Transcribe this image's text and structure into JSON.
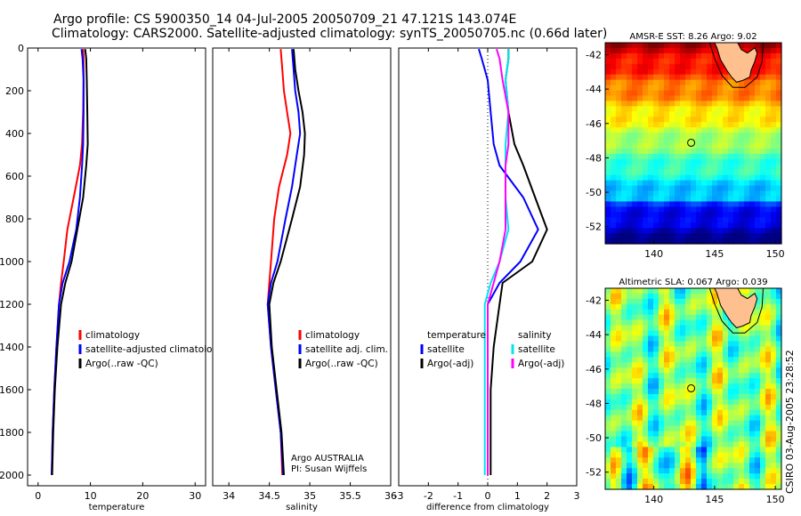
{
  "header": {
    "line1": "Argo profile: CS 5900350_14 04-Jul-2005 20050709_21 47.121S 143.074E",
    "line2": "Climatology: CARS2000. Satellite-adjusted climatology: synTS_20050705.nc (0.66d later)"
  },
  "credit": "CSIRO 03-Aug-2005 23:28:52",
  "colors": {
    "red": "#ff0000",
    "blue": "#0000ff",
    "black": "#000000",
    "cyan": "#00e5ee",
    "magenta": "#ff00ff",
    "land": "#ffc090"
  },
  "chart_data": [
    {
      "type": "line",
      "id": "temperature",
      "xlabel": "temperature",
      "ylabel": "",
      "xlim": [
        -2,
        32
      ],
      "ylim": [
        2050,
        0
      ],
      "xticks": [
        0,
        10,
        20,
        30
      ],
      "xticklabels": [
        "0",
        "10",
        "20",
        "30"
      ],
      "yticks": [
        0,
        200,
        400,
        600,
        800,
        1000,
        1200,
        1400,
        1600,
        1800,
        2000
      ],
      "yticklabels": [
        "0",
        "200",
        "400",
        "600",
        "800",
        "1000",
        "1200",
        "1400",
        "1600",
        "1800",
        "2000"
      ],
      "legend": [
        "climatology",
        "satellite-adjusted climatology",
        "Argo(..raw -QC)"
      ],
      "series": [
        {
          "name": "climatology",
          "color": "red",
          "x": [
            8.6,
            8.7,
            8.7,
            8.6,
            8.4,
            8.0,
            6.8,
            5.6,
            4.9,
            4.4,
            4.0,
            3.5,
            3.1,
            2.8,
            2.6
          ],
          "y": [
            5,
            50,
            150,
            300,
            450,
            550,
            700,
            850,
            1000,
            1100,
            1200,
            1400,
            1600,
            1800,
            2000
          ]
        },
        {
          "name": "satellite-adjusted climatology",
          "color": "blue",
          "x": [
            8.3,
            8.5,
            8.7,
            8.7,
            8.6,
            8.4,
            8.0,
            7.3,
            6.0,
            4.7,
            4.0,
            3.5,
            3.1,
            2.8,
            2.6
          ],
          "y": [
            5,
            50,
            150,
            300,
            450,
            550,
            700,
            850,
            1000,
            1100,
            1200,
            1400,
            1600,
            1800,
            2000
          ]
        },
        {
          "name": "Argo(..raw -QC)",
          "color": "black",
          "x": [
            9.0,
            9.2,
            9.3,
            9.4,
            9.5,
            9.2,
            8.6,
            7.5,
            6.4,
            5.2,
            4.4,
            3.7,
            3.2,
            2.9,
            2.7
          ],
          "y": [
            5,
            50,
            150,
            300,
            450,
            550,
            700,
            850,
            1000,
            1100,
            1200,
            1400,
            1600,
            1800,
            2000
          ]
        }
      ]
    },
    {
      "type": "line",
      "id": "salinity",
      "xlabel": "salinity",
      "xlim": [
        33.8,
        36.0
      ],
      "ylim": [
        2050,
        0
      ],
      "xticks": [
        34,
        34.5,
        35,
        35.5,
        36
      ],
      "xticklabels": [
        "34",
        "34.5",
        "35",
        "35.5",
        "36"
      ],
      "legend": [
        "climatology",
        "satellite adj. clim.",
        "Argo(..raw -QC)"
      ],
      "annotation": [
        "Argo AUSTRALIA",
        "PI: Susan Wijffels"
      ],
      "series": [
        {
          "name": "climatology",
          "color": "red",
          "x": [
            34.64,
            34.66,
            34.68,
            34.72,
            34.76,
            34.72,
            34.62,
            34.56,
            34.52,
            34.5,
            34.48,
            34.52,
            34.58,
            34.64,
            34.66
          ],
          "y": [
            5,
            100,
            200,
            300,
            400,
            500,
            650,
            800,
            1000,
            1100,
            1200,
            1400,
            1600,
            1800,
            2000
          ]
        },
        {
          "name": "satellite adj. clim.",
          "color": "blue",
          "x": [
            34.78,
            34.8,
            34.82,
            34.86,
            34.88,
            34.84,
            34.78,
            34.7,
            34.6,
            34.52,
            34.48,
            34.52,
            34.58,
            34.64,
            34.67
          ],
          "y": [
            5,
            100,
            200,
            300,
            400,
            500,
            650,
            800,
            1000,
            1100,
            1200,
            1400,
            1600,
            1800,
            2000
          ]
        },
        {
          "name": "Argo(..raw -QC)",
          "color": "black",
          "x": [
            34.8,
            34.82,
            34.86,
            34.91,
            34.94,
            34.93,
            34.88,
            34.78,
            34.64,
            34.55,
            34.5,
            34.53,
            34.59,
            34.65,
            34.68
          ],
          "y": [
            5,
            100,
            200,
            300,
            400,
            500,
            650,
            800,
            1000,
            1100,
            1200,
            1400,
            1600,
            1800,
            2000
          ]
        }
      ]
    },
    {
      "type": "line",
      "id": "difference",
      "xlabel": "difference from climatology",
      "xlim": [
        -3,
        3
      ],
      "ylim": [
        2050,
        0
      ],
      "xticks": [
        -3,
        -2,
        -1,
        0,
        1,
        2,
        3
      ],
      "xticklabels": [
        "-3",
        "-2",
        "-1",
        "0",
        "1",
        "2",
        "3"
      ],
      "legend_left": [
        "temperature",
        "satellite",
        "Argo(-adj)"
      ],
      "legend_right": [
        "salinity",
        "satellite",
        "Argo(-adj)"
      ],
      "series": [
        {
          "name": "temperature satellite",
          "color": "blue",
          "x": [
            -0.3,
            -0.2,
            0.0,
            0.1,
            0.2,
            0.4,
            1.2,
            1.7,
            1.1,
            0.4,
            0.0,
            0.0,
            0.0,
            0.0,
            0.0
          ],
          "y": [
            5,
            50,
            150,
            300,
            450,
            550,
            700,
            850,
            1000,
            1100,
            1200,
            1400,
            1600,
            1800,
            2000
          ]
        },
        {
          "name": "temperature Argo(-adj)",
          "color": "black",
          "x": [
            0.7,
            0.7,
            0.6,
            0.7,
            0.9,
            1.2,
            1.6,
            2.0,
            1.5,
            0.5,
            0.4,
            0.2,
            0.1,
            0.1,
            0.1
          ],
          "y": [
            5,
            50,
            150,
            300,
            450,
            550,
            700,
            850,
            1000,
            1100,
            1200,
            1400,
            1600,
            1800,
            2000
          ]
        },
        {
          "name": "salinity satellite",
          "color": "cyan",
          "x": [
            0.7,
            0.7,
            0.6,
            0.7,
            0.6,
            0.6,
            0.6,
            0.7,
            0.4,
            0.1,
            -0.1,
            -0.1,
            -0.1,
            -0.1,
            -0.1
          ],
          "y": [
            5,
            50,
            150,
            300,
            450,
            550,
            700,
            850,
            1000,
            1100,
            1200,
            1400,
            1600,
            1800,
            2000
          ]
        },
        {
          "name": "salinity Argo(-adj)",
          "color": "magenta",
          "x": [
            0.3,
            0.4,
            0.5,
            0.7,
            0.7,
            0.6,
            0.6,
            0.6,
            0.4,
            0.2,
            0.0,
            0.0,
            0.0,
            0.0,
            0.0
          ],
          "y": [
            5,
            50,
            150,
            300,
            450,
            550,
            700,
            850,
            1000,
            1100,
            1200,
            1400,
            1600,
            1800,
            2000
          ]
        }
      ]
    },
    {
      "type": "heatmap",
      "id": "sst-map",
      "title": "AMSR-E SST: 8.26 Argo: 9.02",
      "xlim": [
        136,
        150.5
      ],
      "ylim": [
        -53,
        -41.3
      ],
      "xticks": [
        140,
        145,
        150
      ],
      "xticklabels": [
        "140",
        "145",
        "150"
      ],
      "yticks": [
        -42,
        -44,
        -46,
        -48,
        -50,
        -52
      ],
      "yticklabels": [
        "-42",
        "-44",
        "-46",
        "-48",
        "-50",
        "-52"
      ],
      "marker": {
        "lon": 143.074,
        "lat": -47.121
      }
    },
    {
      "type": "heatmap",
      "id": "sla-map",
      "title": "Altimetric SLA: 0.067 Argo: 0.039",
      "xlim": [
        136,
        150.5
      ],
      "ylim": [
        -53,
        -41.3
      ],
      "xticks": [
        140,
        145,
        150
      ],
      "xticklabels": [
        "140",
        "145",
        "150"
      ],
      "yticks": [
        -42,
        -44,
        -46,
        -48,
        -50,
        -52
      ],
      "yticklabels": [
        "-42",
        "-44",
        "-46",
        "-48",
        "-50",
        "-52"
      ],
      "marker": {
        "lon": 143.074,
        "lat": -47.121
      }
    }
  ]
}
